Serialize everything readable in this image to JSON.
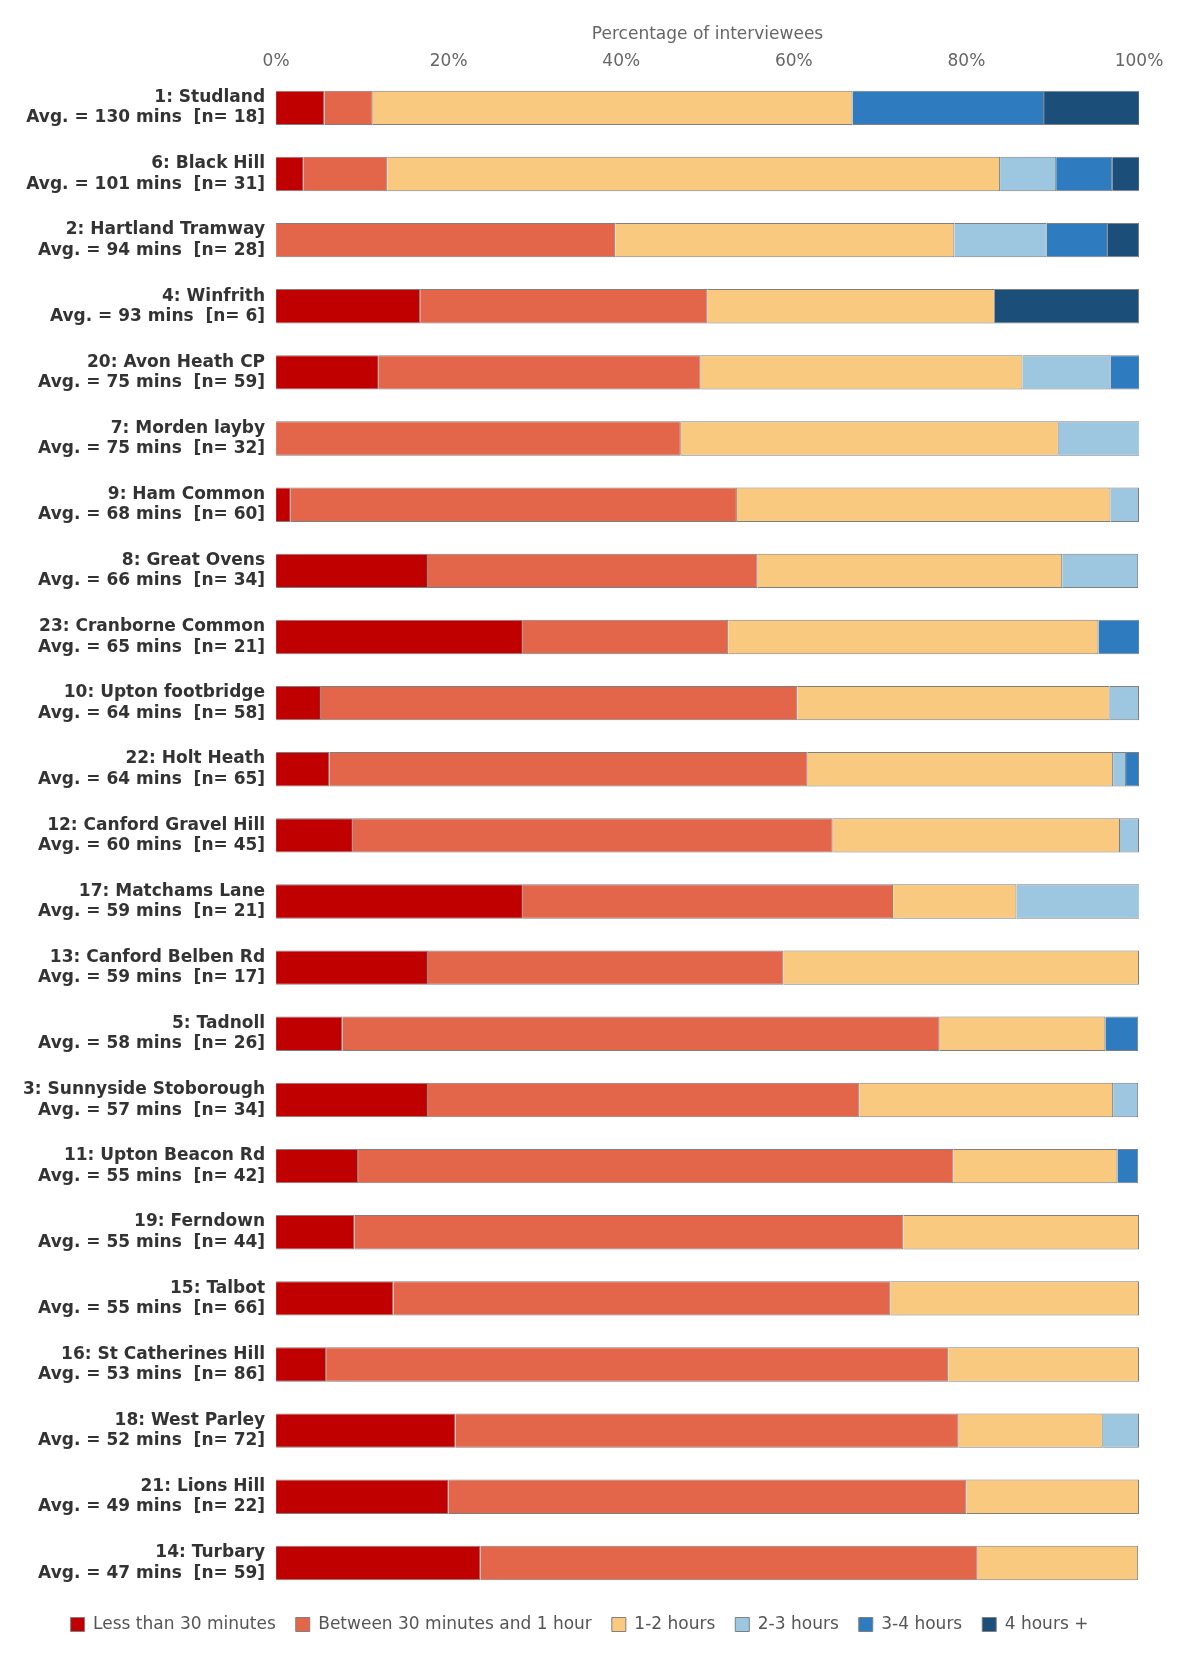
{
  "chart_data": {
    "type": "bar",
    "orientation": "horizontal",
    "stacked": true,
    "xlabel": "Percentage of interviewees",
    "legend": "bottom",
    "grid": false,
    "categories": [
      "1: Studland\nAvg. = 130 mins  [n= 18]",
      "6: Black Hill\nAvg. = 101 mins  [n= 31]",
      "2: Hartland Tramway\nAvg. = 94 mins  [n= 28]",
      "4: Winfrith\nAvg. = 93 mins  [n= 6]",
      "20: Avon Heath CP\nAvg. = 75 mins  [n= 59]",
      "7: Morden layby\nAvg. = 75 mins  [n= 32]",
      "9: Ham Common\nAvg. = 68 mins  [n= 60]",
      "8: Great Ovens\nAvg. = 66 mins  [n= 34]",
      "23: Cranborne Common\nAvg. = 65 mins  [n= 21]",
      "10: Upton footbridge\nAvg. = 64 mins  [n= 58]",
      "22: Holt Heath\nAvg. = 64 mins  [n= 65]",
      "12: Canford Gravel Hill\nAvg. = 60 mins  [n= 45]",
      "17: Matchams Lane\nAvg. = 59 mins  [n= 21]",
      "13: Canford Belben Rd\nAvg. = 59 mins  [n= 17]",
      "5: Tadnoll\nAvg. = 58 mins  [n= 26]",
      "3: Sunnyside Stoborough\nAvg. = 57 mins  [n= 34]",
      "11: Upton Beacon Rd\nAvg. = 55 mins  [n= 42]",
      "19: Ferndown\nAvg. = 55 mins  [n= 44]",
      "15: Talbot\nAvg. = 55 mins  [n= 66]",
      "16: St Catherines Hill\nAvg. = 53 mins  [n= 86]",
      "18: West Parley\nAvg. = 52 mins  [n= 72]",
      "21: Lions Hill\nAvg. = 49 mins  [n= 22]",
      "14: Turbary\nAvg. = 47 mins  [n= 59]"
    ],
    "xlim": [
      0,
      100
    ],
    "xticks": [
      {
        "value": 0,
        "label": "0%"
      },
      {
        "value": 20,
        "label": "20%"
      },
      {
        "value": 40,
        "label": "40%"
      },
      {
        "value": 60,
        "label": "60%"
      },
      {
        "value": 80,
        "label": "80%"
      },
      {
        "value": 100,
        "label": "100%"
      }
    ],
    "series": [
      {
        "name": "Less than 30 minutes",
        "color": "#c00000",
        "values": [
          5.6,
          3.2,
          0,
          16.7,
          11.9,
          0,
          1.7,
          17.6,
          28.6,
          5.2,
          6.2,
          8.9,
          28.6,
          17.6,
          7.7,
          17.6,
          9.5,
          9.1,
          13.6,
          5.8,
          20.8,
          20,
          23.7
        ]
      },
      {
        "name": "Between 30 minutes and 1 hour",
        "color": "#e3664a",
        "values": [
          5.6,
          9.7,
          39.3,
          33.3,
          37.3,
          46.9,
          51.7,
          38.2,
          23.8,
          55.2,
          55.4,
          55.6,
          42.9,
          41.2,
          69.2,
          50,
          69,
          63.6,
          57.6,
          72.1,
          58.3,
          60,
          57.6
        ]
      },
      {
        "name": "1-2 hours",
        "color": "#f9c980",
        "values": [
          55.6,
          71,
          39.3,
          33.3,
          37.3,
          43.8,
          43.3,
          35.3,
          42.9,
          36.2,
          35.4,
          33.3,
          14.3,
          41.2,
          19.2,
          29.4,
          19,
          27.3,
          28.8,
          22.1,
          16.7,
          20,
          18.6
        ]
      },
      {
        "name": "2-3 hours",
        "color": "#9dc6e0",
        "values": [
          0,
          6.5,
          10.7,
          0,
          10.2,
          9.4,
          3.3,
          8.8,
          0,
          3.4,
          1.5,
          2.2,
          14.3,
          0,
          0,
          2.9,
          0,
          0,
          0,
          0,
          4.2,
          0,
          0
        ]
      },
      {
        "name": "3-4 hours",
        "color": "#2f7bbf",
        "values": [
          22.2,
          6.5,
          7.1,
          0,
          3.4,
          0,
          0,
          0,
          4.8,
          0,
          1.5,
          0,
          0,
          0,
          3.8,
          0,
          2.4,
          0,
          0,
          0,
          0,
          0,
          0
        ]
      },
      {
        "name": "4 hours +",
        "color": "#1c4e7a",
        "values": [
          11.1,
          3.2,
          3.6,
          16.7,
          0,
          0,
          0,
          0,
          0,
          0,
          0,
          0,
          0,
          0,
          0,
          0,
          0,
          0,
          0,
          0,
          0,
          0,
          0
        ]
      }
    ]
  }
}
